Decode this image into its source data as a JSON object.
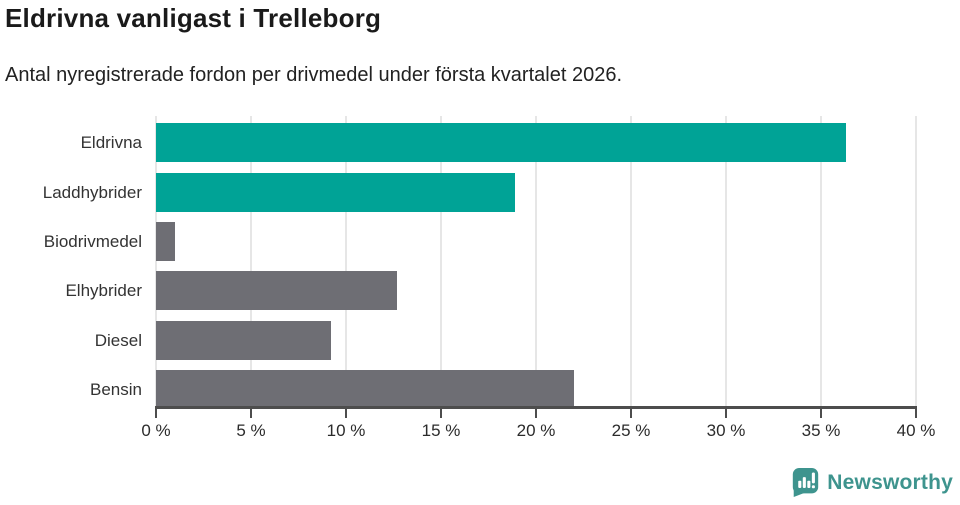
{
  "header": {
    "title": "Eldrivna vanligast i Trelleborg",
    "subtitle": "Antal nyregistrerade fordon per drivmedel under första kvartalet 2026."
  },
  "chart_data": {
    "type": "bar",
    "orientation": "horizontal",
    "categories": [
      "Eldrivna",
      "Laddhybrider",
      "Biodrivmedel",
      "Elhybrider",
      "Diesel",
      "Bensin"
    ],
    "values": [
      36.3,
      18.9,
      1.0,
      12.7,
      9.2,
      22.0
    ],
    "unit": "%",
    "title": "Eldrivna vanligast i Trelleborg",
    "xlabel": "",
    "ylabel": "",
    "xlim": [
      0,
      40
    ],
    "x_ticks": [
      0,
      5,
      10,
      15,
      20,
      25,
      30,
      35,
      40
    ],
    "x_tick_labels": [
      "0 %",
      "5 %",
      "10 %",
      "15 %",
      "20 %",
      "25 %",
      "30 %",
      "35 %",
      "40 %"
    ],
    "grid": true,
    "legend": false,
    "colors": {
      "highlight": "#00a396",
      "default": "#6e6e74",
      "gridline": "#e6e6e6",
      "axis": "#4d4d4d"
    },
    "bar_colors": [
      "#00a396",
      "#00a396",
      "#6e6e74",
      "#6e6e74",
      "#6e6e74",
      "#6e6e74"
    ]
  },
  "footer": {
    "brand": "Newsworthy",
    "brand_color": "#3e948e",
    "logo_icon": "bar-chart-speech-bubble"
  }
}
